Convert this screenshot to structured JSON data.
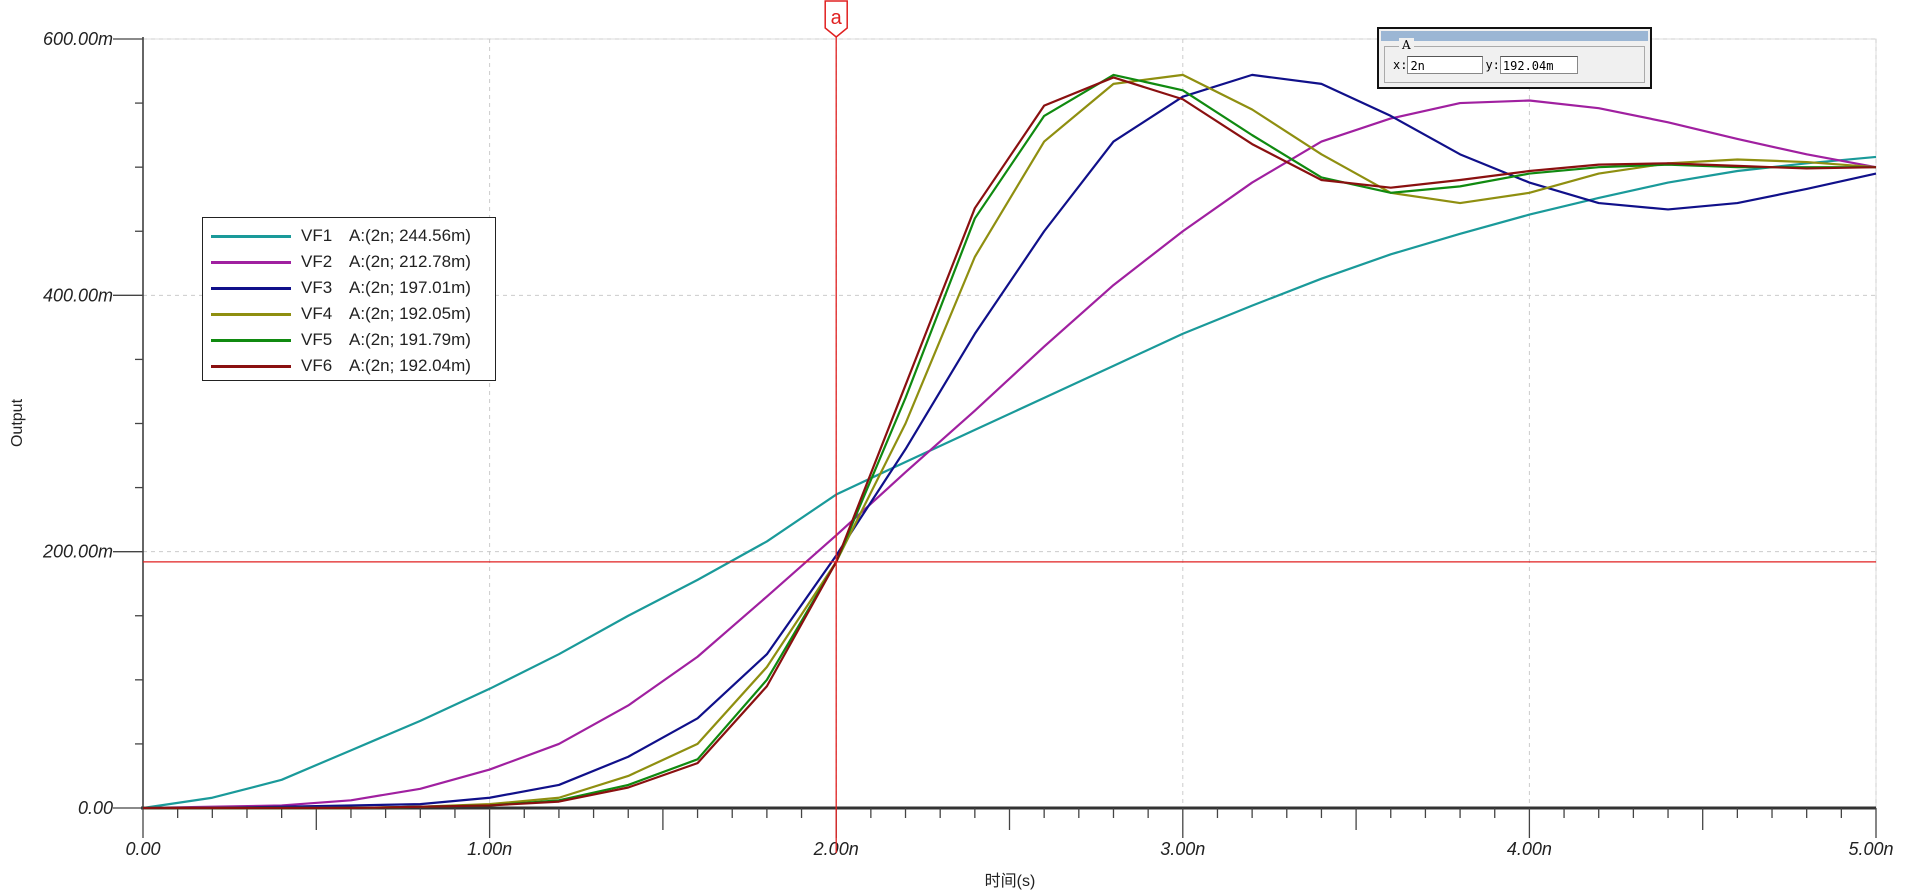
{
  "chart_data": {
    "type": "line",
    "title": "",
    "xlabel": "时间(s)",
    "ylabel": "Output",
    "xlim": [
      0,
      5
    ],
    "ylim": [
      0,
      600
    ],
    "x_unit": "n",
    "y_unit": "m",
    "x_ticks": [
      "0.00",
      "1.00n",
      "2.00n",
      "3.00n",
      "4.00n",
      "5.00n"
    ],
    "y_ticks": [
      "0.00",
      "200.00m",
      "400.00m",
      "600.00m"
    ],
    "grid": true,
    "legend_position": "left-middle",
    "x": [
      0,
      0.2,
      0.4,
      0.6,
      0.8,
      1.0,
      1.2,
      1.4,
      1.6,
      1.8,
      2.0,
      2.2,
      2.4,
      2.6,
      2.8,
      3.0,
      3.2,
      3.4,
      3.6,
      3.8,
      4.0,
      4.2,
      4.4,
      4.6,
      4.8,
      5.0
    ],
    "series": [
      {
        "name": "VF1",
        "label": "A:(2n; 244.56m)",
        "color": "#1a9a9a",
        "values": [
          0,
          8,
          22,
          45,
          68,
          93,
          120,
          150,
          178,
          208,
          244.56,
          270,
          295,
          320,
          345,
          370,
          392,
          413,
          432,
          448,
          463,
          476,
          488,
          497,
          503,
          508
        ]
      },
      {
        "name": "VF2",
        "label": "A:(2n; 212.78m)",
        "color": "#a020a0",
        "values": [
          0,
          1,
          2,
          6,
          15,
          30,
          50,
          80,
          118,
          165,
          212.78,
          262,
          310,
          360,
          408,
          450,
          488,
          520,
          538,
          550,
          552,
          546,
          535,
          522,
          510,
          500
        ]
      },
      {
        "name": "VF3",
        "label": "A:(2n; 197.01m)",
        "color": "#10108a",
        "values": [
          0,
          0,
          1,
          2,
          3,
          8,
          18,
          40,
          70,
          120,
          197.01,
          280,
          370,
          450,
          520,
          555,
          572,
          565,
          540,
          510,
          488,
          472,
          467,
          472,
          483,
          495
        ]
      },
      {
        "name": "VF4",
        "label": "A:(2n; 192.05m)",
        "color": "#8f8f10",
        "values": [
          0,
          0,
          0,
          0,
          1,
          3,
          8,
          25,
          50,
          110,
          192.05,
          300,
          430,
          520,
          565,
          572,
          545,
          510,
          480,
          472,
          480,
          495,
          503,
          506,
          504,
          500
        ]
      },
      {
        "name": "VF5",
        "label": "A:(2n; 191.79m)",
        "color": "#108a10",
        "values": [
          0,
          0,
          0,
          0,
          1,
          2,
          6,
          18,
          38,
          100,
          191.79,
          320,
          460,
          540,
          572,
          560,
          525,
          492,
          480,
          485,
          495,
          500,
          502,
          500,
          500,
          500
        ]
      },
      {
        "name": "VF6",
        "label": "A:(2n; 192.04m)",
        "color": "#8a1010",
        "values": [
          0,
          0,
          0,
          0,
          1,
          2,
          5,
          16,
          35,
          95,
          192.04,
          330,
          468,
          548,
          570,
          553,
          518,
          490,
          484,
          490,
          497,
          502,
          503,
          501,
          499,
          500
        ]
      }
    ],
    "cursor": {
      "name": "a",
      "x": 2,
      "y": 192.04,
      "color": "#e02020"
    }
  },
  "cursor_panel": {
    "title": "A",
    "x_label": "x:",
    "x_value": "2n",
    "y_label": "y:",
    "y_value": "192.04m"
  }
}
